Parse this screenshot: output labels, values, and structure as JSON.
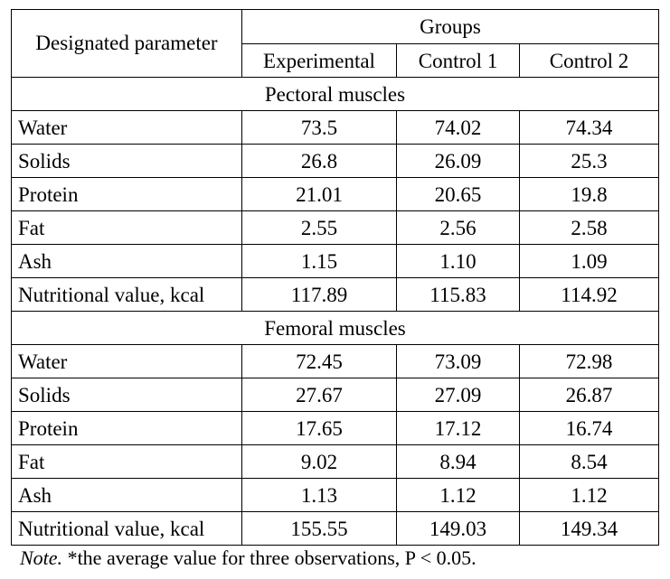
{
  "table": {
    "header": {
      "parameter": "Designated parameter",
      "groups": "Groups",
      "columns": [
        "Experimental",
        "Control 1",
        "Control 2"
      ]
    },
    "sections": [
      {
        "title": "Pectoral muscles",
        "rows": [
          {
            "parameter": "Water",
            "values": [
              "73.5",
              "74.02",
              "74.34"
            ]
          },
          {
            "parameter": "Solids",
            "values": [
              "26.8",
              "26.09",
              "25.3"
            ]
          },
          {
            "parameter": "Protein",
            "values": [
              "21.01",
              "20.65",
              "19.8"
            ]
          },
          {
            "parameter": "Fat",
            "values": [
              "2.55",
              "2.56",
              "2.58"
            ]
          },
          {
            "parameter": "Ash",
            "values": [
              "1.15",
              "1.10",
              "1.09"
            ]
          },
          {
            "parameter": "Nutritional value, kcal",
            "values": [
              "117.89",
              "115.83",
              "114.92"
            ]
          }
        ]
      },
      {
        "title": "Femoral muscles",
        "rows": [
          {
            "parameter": "Water",
            "values": [
              "72.45",
              "73.09",
              "72.98"
            ]
          },
          {
            "parameter": "Solids",
            "values": [
              "27.67",
              "27.09",
              "26.87"
            ]
          },
          {
            "parameter": "Protein",
            "values": [
              "17.65",
              "17.12",
              "16.74"
            ]
          },
          {
            "parameter": "Fat",
            "values": [
              "9.02",
              "8.94",
              "8.54"
            ]
          },
          {
            "parameter": "Ash",
            "values": [
              "1.13",
              "1.12",
              "1.12"
            ]
          },
          {
            "parameter": "Nutritional value, kcal",
            "values": [
              "155.55",
              "149.03",
              "149.34"
            ]
          }
        ]
      }
    ]
  },
  "note": {
    "label": "Note.",
    "text": " *the average value for three observations, P < 0.05."
  }
}
